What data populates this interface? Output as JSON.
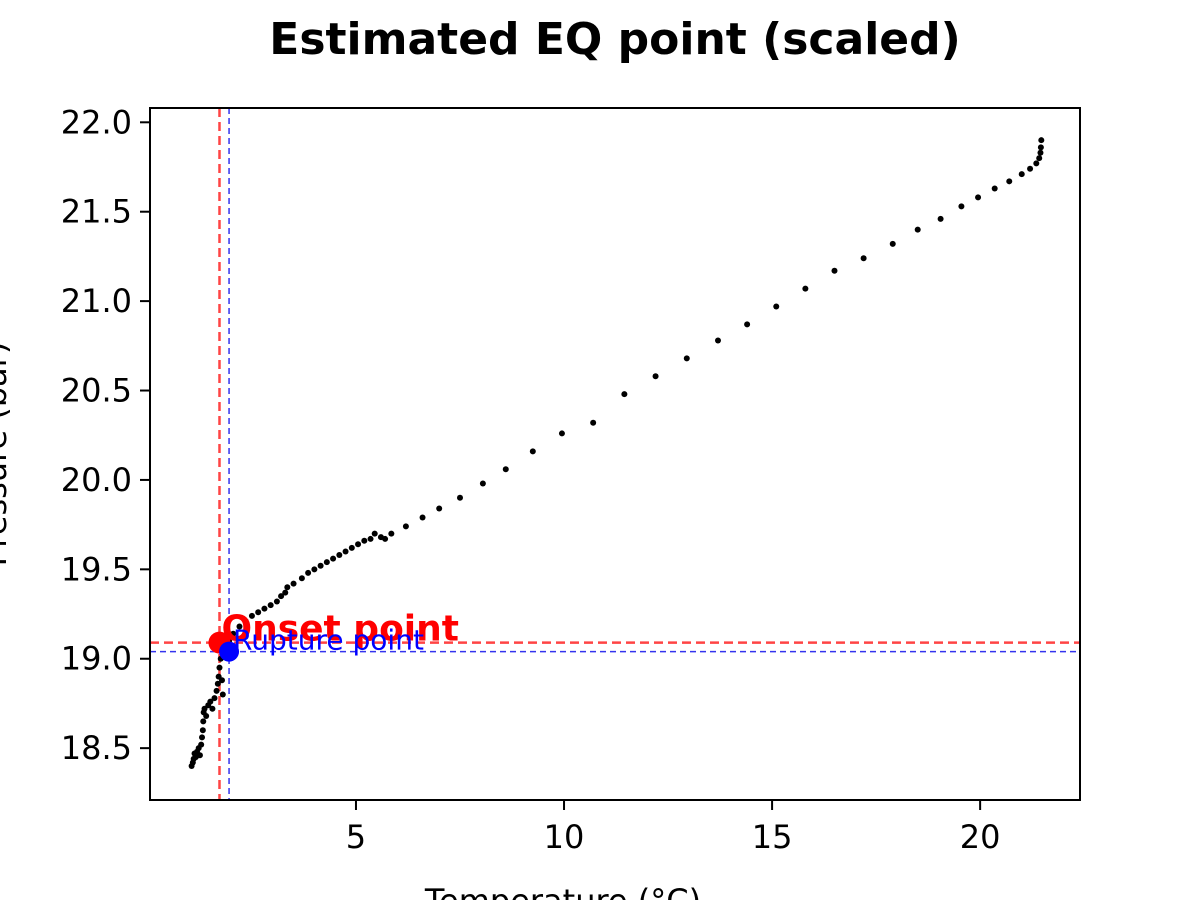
{
  "chart_data": {
    "type": "scatter",
    "title": "Estimated EQ point (scaled)",
    "xlabel": "Temperature (°C)",
    "ylabel": "Pressure (bar)",
    "xlim": [
      0.05,
      22.4
    ],
    "ylim": [
      18.21,
      22.08
    ],
    "xticks": [
      5,
      10,
      15,
      20
    ],
    "yticks": [
      18.5,
      19.0,
      19.5,
      20.0,
      20.5,
      21.0,
      21.5,
      22.0
    ],
    "xtick_labels": [
      "5",
      "10",
      "15",
      "20"
    ],
    "ytick_labels": [
      "18.5",
      "19.0",
      "19.5",
      "20.0",
      "20.5",
      "21.0",
      "21.5",
      "22.0"
    ],
    "grid": false,
    "series": [
      {
        "color": "#000000",
        "points": [
          [
            1.05,
            18.4
          ],
          [
            1.08,
            18.42
          ],
          [
            1.1,
            18.44
          ],
          [
            1.12,
            18.47
          ],
          [
            1.15,
            18.45
          ],
          [
            1.18,
            18.48
          ],
          [
            1.22,
            18.5
          ],
          [
            1.25,
            18.46
          ],
          [
            1.28,
            18.52
          ],
          [
            1.3,
            18.56
          ],
          [
            1.32,
            18.6
          ],
          [
            1.33,
            18.65
          ],
          [
            1.34,
            18.7
          ],
          [
            1.36,
            18.72
          ],
          [
            1.4,
            18.68
          ],
          [
            1.45,
            18.74
          ],
          [
            1.5,
            18.76
          ],
          [
            1.55,
            18.72
          ],
          [
            1.6,
            18.78
          ],
          [
            1.65,
            18.82
          ],
          [
            1.68,
            18.86
          ],
          [
            1.7,
            18.9
          ],
          [
            1.72,
            18.95
          ],
          [
            1.75,
            19.0
          ],
          [
            1.78,
            18.88
          ],
          [
            1.8,
            18.8
          ],
          [
            1.85,
            19.05
          ],
          [
            1.95,
            19.1
          ],
          [
            2.05,
            19.14
          ],
          [
            2.2,
            19.18
          ],
          [
            2.35,
            19.21
          ],
          [
            2.5,
            19.24
          ],
          [
            2.65,
            19.26
          ],
          [
            2.8,
            19.28
          ],
          [
            2.95,
            19.3
          ],
          [
            3.1,
            19.32
          ],
          [
            3.2,
            19.35
          ],
          [
            3.3,
            19.37
          ],
          [
            3.35,
            19.4
          ],
          [
            3.5,
            19.42
          ],
          [
            3.7,
            19.45
          ],
          [
            3.85,
            19.48
          ],
          [
            4.0,
            19.5
          ],
          [
            4.15,
            19.52
          ],
          [
            4.3,
            19.54
          ],
          [
            4.45,
            19.56
          ],
          [
            4.6,
            19.58
          ],
          [
            4.75,
            19.6
          ],
          [
            4.9,
            19.62
          ],
          [
            5.05,
            19.64
          ],
          [
            5.2,
            19.66
          ],
          [
            5.35,
            19.67
          ],
          [
            5.45,
            19.7
          ],
          [
            5.6,
            19.68
          ],
          [
            5.7,
            19.67
          ],
          [
            5.85,
            19.7
          ],
          [
            6.2,
            19.74
          ],
          [
            6.6,
            19.79
          ],
          [
            7.0,
            19.84
          ],
          [
            7.5,
            19.9
          ],
          [
            8.05,
            19.98
          ],
          [
            8.6,
            20.06
          ],
          [
            9.25,
            20.16
          ],
          [
            9.95,
            20.26
          ],
          [
            10.7,
            20.32
          ],
          [
            11.45,
            20.48
          ],
          [
            12.2,
            20.58
          ],
          [
            12.95,
            20.68
          ],
          [
            13.7,
            20.78
          ],
          [
            14.4,
            20.87
          ],
          [
            15.1,
            20.97
          ],
          [
            15.8,
            21.07
          ],
          [
            16.5,
            21.17
          ],
          [
            17.2,
            21.24
          ],
          [
            17.9,
            21.32
          ],
          [
            18.5,
            21.4
          ],
          [
            19.05,
            21.46
          ],
          [
            19.55,
            21.53
          ],
          [
            19.95,
            21.58
          ],
          [
            20.35,
            21.63
          ],
          [
            20.7,
            21.67
          ],
          [
            21.0,
            21.71
          ],
          [
            21.2,
            21.74
          ],
          [
            21.35,
            21.77
          ],
          [
            21.42,
            21.8
          ],
          [
            21.45,
            21.83
          ],
          [
            21.46,
            21.86
          ],
          [
            21.47,
            21.9
          ]
        ]
      }
    ],
    "annotations": [
      {
        "label": "Onset point",
        "x": 1.72,
        "y": 19.09,
        "color": "#ff0000",
        "line_color": "#ff4444"
      },
      {
        "label": "Rupture point",
        "x": 1.95,
        "y": 19.04,
        "color": "#0000ff",
        "line_color": "#3333ee"
      }
    ]
  }
}
